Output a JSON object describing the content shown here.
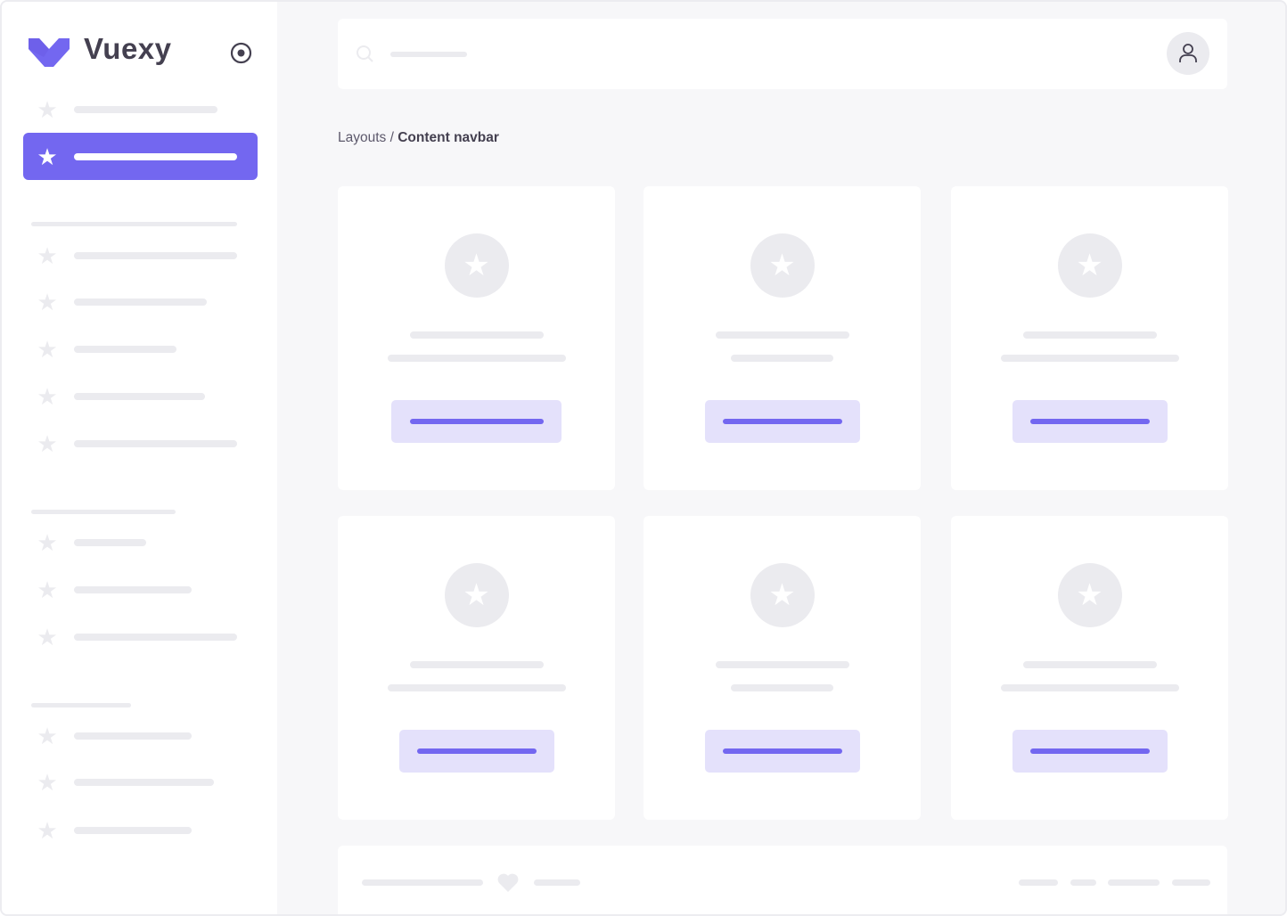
{
  "brand": {
    "name": "Vuexy",
    "color": "#7367f0"
  },
  "sidebar": {
    "toggle_icon": "radio-circle-icon",
    "active_index": 1,
    "item_icon": "star-icon"
  },
  "breadcrumb": {
    "parent": "Layouts",
    "separator": "/",
    "current": "Content navbar"
  },
  "navbar": {
    "search_icon": "search-icon",
    "avatar_icon": "user-icon"
  },
  "cards": {
    "count": 6,
    "icon": "star-icon"
  },
  "footer": {
    "icon": "heart-icon"
  },
  "colors": {
    "primary": "#7367f0",
    "primary_light": "#e4e1fb",
    "placeholder": "#ebebef",
    "background": "#f7f7f9"
  }
}
